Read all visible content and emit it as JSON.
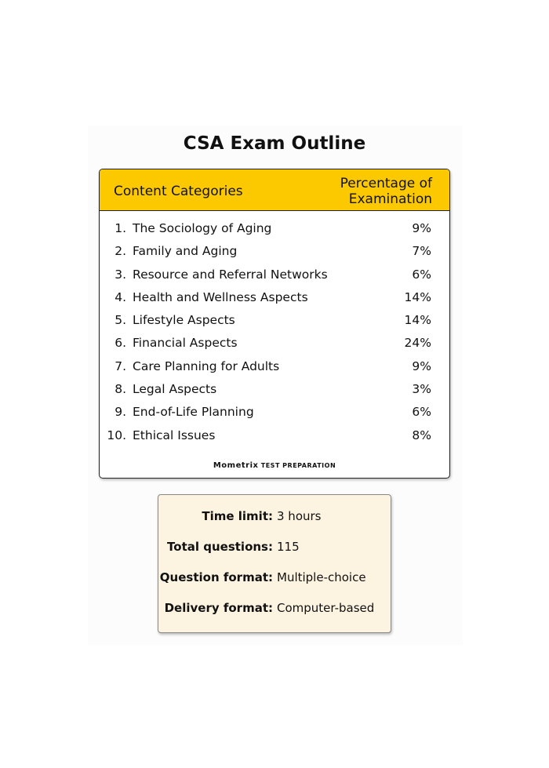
{
  "title": "CSA Exam Outline",
  "table": {
    "header_category": "Content Categories",
    "header_percent_line1": "Percentage of",
    "header_percent_line2": "Examination",
    "rows": [
      {
        "num": "1.",
        "category": "The Sociology of Aging",
        "percent": "9%"
      },
      {
        "num": "2.",
        "category": "Family and Aging",
        "percent": "7%"
      },
      {
        "num": "3.",
        "category": "Resource and Referral Networks",
        "percent": "6%"
      },
      {
        "num": "4.",
        "category": "Health and Wellness Aspects",
        "percent": "14%"
      },
      {
        "num": "5.",
        "category": "Lifestyle Aspects",
        "percent": "14%"
      },
      {
        "num": "6.",
        "category": "Financial Aspects",
        "percent": "24%"
      },
      {
        "num": "7.",
        "category": "Care Planning for Adults",
        "percent": "9%"
      },
      {
        "num": "8.",
        "category": "Legal Aspects",
        "percent": "3%"
      },
      {
        "num": "9.",
        "category": "End-of-Life Planning",
        "percent": "6%"
      },
      {
        "num": "10.",
        "category": "Ethical Issues",
        "percent": "8%"
      }
    ]
  },
  "logo": {
    "brand": "Mometrix",
    "tagline": "TEST PREPARATION"
  },
  "info": [
    {
      "label": "Time limit:",
      "value": "3 hours"
    },
    {
      "label": "Total questions:",
      "value": "115"
    },
    {
      "label": "Question format:",
      "value": "Multiple-choice"
    },
    {
      "label": "Delivery format:",
      "value": "Computer-based"
    }
  ],
  "colors": {
    "header": "#fcc900",
    "info_bg": "#fdf3e1"
  }
}
